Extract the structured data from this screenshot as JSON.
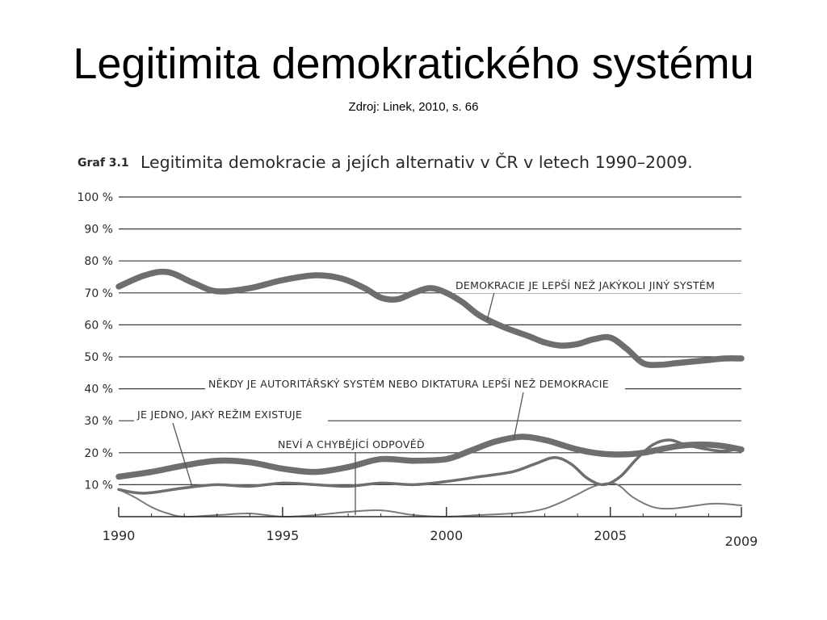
{
  "slide": {
    "title": "Legitimita demokratického systému",
    "source": "Zdroj: Linek, 2010, s. 66"
  },
  "chart_data": {
    "type": "line",
    "label_prefix": "Graf 3.1",
    "title": "Legitimita demokracie a jejích alternativ v ČR v letech 1990–2009.",
    "xlabel": "",
    "ylabel": "",
    "xlim": [
      1990,
      2009
    ],
    "ylim": [
      0,
      100
    ],
    "x_ticks": [
      1990,
      1995,
      2000,
      2005,
      2009
    ],
    "y_ticks": [
      10,
      20,
      30,
      40,
      50,
      60,
      70,
      80,
      90,
      100
    ],
    "y_tick_labels": [
      "10 %",
      "20 %",
      "30 %",
      "40 %",
      "50 %",
      "60 %",
      "70 %",
      "80 %",
      "90 %",
      "100 %"
    ],
    "grid": true,
    "series": [
      {
        "name": "DEMOKRACIE JE LEPŠÍ NEŽ JAKÝKOLI JINÝ SYSTÉM",
        "color": "#6e6e6e",
        "weight": "thick",
        "x": [
          1990,
          1990.8,
          1991.5,
          1992.3,
          1993,
          1994,
          1995,
          1996,
          1996.8,
          1997.5,
          1998,
          1998.5,
          1999,
          1999.5,
          2000,
          2000.5,
          2001,
          2001.7,
          2002.5,
          2003,
          2003.5,
          2004,
          2004.5,
          2005,
          2005.5,
          2006,
          2006.5,
          2007,
          2007.5,
          2008,
          2008.5,
          2009
        ],
        "values": [
          72,
          75.5,
          76.5,
          73,
          70.5,
          71.5,
          74,
          75.5,
          74.5,
          71.5,
          68.5,
          68,
          70,
          71.5,
          70,
          67,
          63,
          59.5,
          56.5,
          54.5,
          53.5,
          54,
          55.5,
          56,
          52.5,
          48,
          47.5,
          48,
          48.5,
          49,
          49.5,
          49.5
        ]
      },
      {
        "name": "NĚKDY JE AUTORITÁŘSKÝ SYSTÉM NEBO DIKTATURA LEPŠÍ NEŽ DEMOKRACIE",
        "color": "#6e6e6e",
        "weight": "thick",
        "x": [
          1990,
          1991,
          1992,
          1993,
          1994,
          1995,
          1996,
          1997,
          1998,
          1999,
          2000,
          2000.7,
          2001.5,
          2002.3,
          2003,
          2003.5,
          2004,
          2004.5,
          2005,
          2005.5,
          2006,
          2006.5,
          2007,
          2007.5,
          2008,
          2008.5,
          2009
        ],
        "values": [
          12.5,
          14,
          16,
          17.5,
          17,
          15,
          14,
          15.5,
          18,
          17.5,
          18,
          20.5,
          23.5,
          25,
          24,
          22.5,
          21,
          20,
          19.5,
          19.5,
          20,
          21,
          22,
          22.5,
          22.5,
          22,
          21
        ]
      },
      {
        "name": "JE JEDNO, JAKÝ REŽIM EXISTUJE",
        "color": "#6e6e6e",
        "weight": "medium",
        "x": [
          1990,
          1990.5,
          1991,
          1992,
          1993,
          1994,
          1995,
          1996,
          1997,
          1998,
          1999,
          2000,
          2001,
          2002,
          2002.7,
          2003.3,
          2003.8,
          2004.3,
          2004.8,
          2005.3,
          2005.8,
          2006.3,
          2006.8,
          2007.3,
          2008,
          2008.5,
          2009
        ],
        "values": [
          8.5,
          7.5,
          7.5,
          9,
          10,
          9.5,
          10.5,
          10,
          9.5,
          10.5,
          10,
          11,
          12.5,
          14,
          16.5,
          18.5,
          16.5,
          12,
          10,
          12.5,
          18,
          22.5,
          24,
          22.5,
          21,
          20.5,
          21.5
        ]
      },
      {
        "name": "NEVÍ A CHYBĚJÍCÍ ODPOVĚĎ",
        "color": "#7a7a7a",
        "weight": "thin",
        "x": [
          1990,
          1990.5,
          1991,
          1991.5,
          1992,
          1993,
          1994,
          1995,
          1996,
          1997,
          1998,
          1999,
          2000,
          2001,
          2002,
          2002.5,
          2003,
          2003.5,
          2004,
          2004.5,
          2005,
          2005.3,
          2005.7,
          2006.3,
          2006.8,
          2007.3,
          2008,
          2008.5,
          2009
        ],
        "values": [
          8.5,
          6,
          3,
          1,
          0,
          0.5,
          1,
          0,
          0.5,
          1.5,
          2,
          0.5,
          0,
          0.5,
          1,
          1.5,
          2.5,
          4.5,
          7,
          9.5,
          10.5,
          9.5,
          6,
          3,
          2.5,
          3,
          4,
          4,
          3.5
        ]
      }
    ]
  }
}
